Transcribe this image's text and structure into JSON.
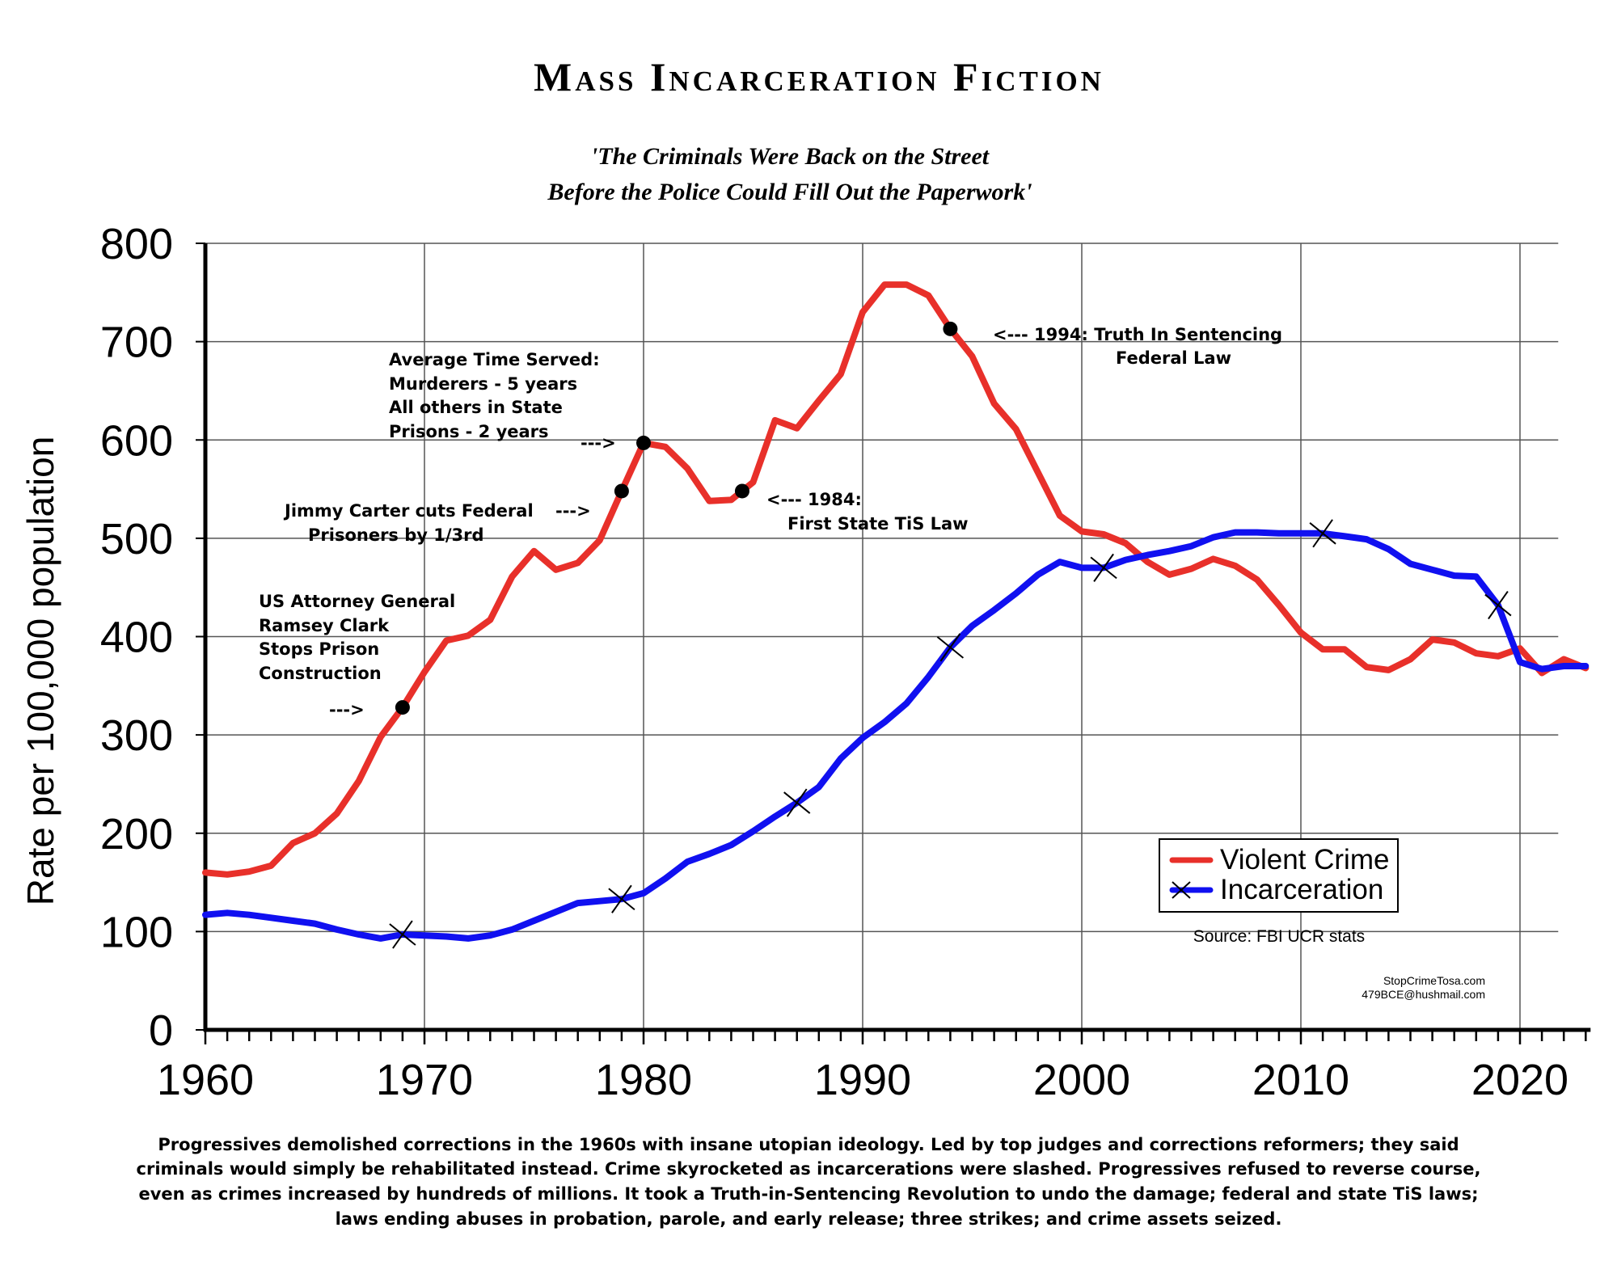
{
  "chart_data": {
    "type": "line",
    "title": "Mass Incarceration Fiction",
    "subtitle": [
      "'The Criminals Were Back on the Street",
      "Before the Police Could Fill Out the Paperwork'"
    ],
    "xlabel": "",
    "ylabel": "Rate per 100,000 population",
    "xlim": [
      1960,
      2023
    ],
    "ylim": [
      0,
      800
    ],
    "xticks": [
      "1960",
      "1970",
      "1980",
      "1990",
      "2000",
      "2010",
      "2020"
    ],
    "yticks": [
      "0",
      "100",
      "200",
      "300",
      "400",
      "500",
      "600",
      "700",
      "800"
    ],
    "grid": true,
    "legend_position": "bottom-right",
    "x": [
      1960,
      1961,
      1962,
      1963,
      1964,
      1965,
      1966,
      1967,
      1968,
      1969,
      1970,
      1971,
      1972,
      1973,
      1974,
      1975,
      1976,
      1977,
      1978,
      1979,
      1980,
      1981,
      1982,
      1983,
      1984,
      1985,
      1986,
      1987,
      1988,
      1989,
      1990,
      1991,
      1992,
      1993,
      1994,
      1995,
      1996,
      1997,
      1998,
      1999,
      2000,
      2001,
      2002,
      2003,
      2004,
      2005,
      2006,
      2007,
      2008,
      2009,
      2010,
      2011,
      2012,
      2013,
      2014,
      2015,
      2016,
      2017,
      2018,
      2019,
      2020,
      2021,
      2022,
      2023
    ],
    "series": [
      {
        "name": "Violent Crime",
        "color": "#e8302a",
        "values": [
          160,
          158,
          161,
          167,
          190,
          200,
          220,
          253,
          298,
          328,
          364,
          396,
          401,
          417,
          461,
          487,
          468,
          475,
          498,
          548,
          597,
          593,
          571,
          538,
          539,
          557,
          620,
          612,
          640,
          667,
          730,
          758,
          758,
          747,
          713,
          685,
          637,
          611,
          567,
          523,
          507,
          504,
          495,
          476,
          463,
          469,
          479,
          472,
          458,
          432,
          404,
          387,
          387,
          369,
          366,
          377,
          397,
          394,
          383,
          380,
          388,
          363,
          377,
          368
        ],
        "markers": [
          1969,
          1979,
          1980,
          1984.5,
          1994
        ],
        "marker": "dot"
      },
      {
        "name": "Incarceration",
        "color": "#1010f0",
        "values": [
          117,
          119,
          117,
          114,
          111,
          108,
          102,
          97,
          93,
          97,
          96,
          95,
          93,
          96,
          102,
          111,
          120,
          129,
          131,
          133,
          139,
          154,
          171,
          179,
          188,
          202,
          217,
          231,
          247,
          276,
          297,
          313,
          332,
          359,
          389,
          411,
          427,
          444,
          463,
          476,
          470,
          470,
          478,
          483,
          487,
          492,
          501,
          506,
          506,
          505,
          505,
          505,
          502,
          499,
          489,
          474,
          468,
          462,
          461,
          432,
          374,
          367,
          370,
          370
        ],
        "markers": [
          1969,
          1979,
          1987,
          1994,
          2001,
          2011,
          2019
        ],
        "marker": "x"
      }
    ],
    "annotations": {
      "avg_time": [
        "Average Time Served:",
        "Murderers  -  5 years",
        "All others in State",
        "Prisons  -  2 years"
      ],
      "avg_time_arrow": "--->",
      "carter": [
        "Jimmy Carter cuts Federal",
        "Prisoners by 1/3rd"
      ],
      "carter_arrow": "--->",
      "clark": [
        "US Attorney General",
        "Ramsey Clark",
        "Stops Prison",
        "Construction"
      ],
      "clark_arrow": "--->",
      "tis1984": [
        "<--- 1984:",
        "First State TiS Law"
      ],
      "tis1994": [
        "<---  1994: Truth In Sentencing",
        "Federal Law"
      ]
    },
    "source": "Source: FBI UCR stats",
    "credit": [
      "StopCrimeTosa.com",
      "479BCE@hushmail.com"
    ]
  },
  "footer": [
    "Progressives demolished corrections in the 1960s with insane utopian ideology.  Led by top judges and corrections reformers; they said",
    "criminals would simply be rehabilitated instead.  Crime skyrocketed as incarcerations were slashed.  Progressives refused to reverse course,",
    "even as crimes increased by hundreds of millions. It took a Truth-in-Sentencing Revolution to undo the damage; federal and state TiS laws;",
    "laws ending abuses in probation, parole, and early release; three strikes; and crime assets seized."
  ]
}
